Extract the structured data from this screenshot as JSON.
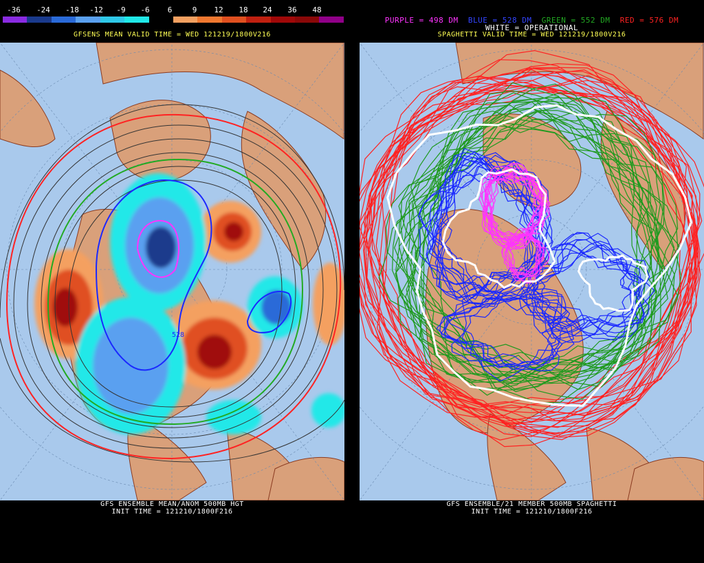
{
  "left_panel": {
    "colorbar": {
      "ticks": [
        "-36",
        "-24",
        "-18",
        "-12",
        "-9",
        "-6",
        "6",
        "9",
        "12",
        "18",
        "24",
        "36",
        "48"
      ],
      "colors": [
        "#8a2be2",
        "#1a3a8c",
        "#2a6ad8",
        "#5aa0f0",
        "#2fc8e8",
        "#20e8e8",
        "#000000",
        "#f4a060",
        "#f07830",
        "#e05020",
        "#c02010",
        "#a00808",
        "#8a0808",
        "#900088"
      ]
    },
    "valid_time": "GFSENS MEAN VALID TIME = WED 121219/1800V216",
    "contour_label": "528",
    "footer_line1": "GFS ENSEMBLE MEAN/ANOM 500MB HGT",
    "footer_line2": "INIT TIME = 121210/1800F216"
  },
  "right_panel": {
    "legend": {
      "purple": "PURPLE = 498 DM",
      "blue": "BLUE = 528 DM",
      "green": "GREEN = 552 DM",
      "red": "RED = 576 DM",
      "white": "WHITE = OPERATIONAL",
      "colors": {
        "purple": "#ff33ff",
        "blue": "#3344ff",
        "green": "#22aa22",
        "red": "#ff2222",
        "white": "#ffffff"
      }
    },
    "valid_time": "SPAGHETTI VALID TIME = WED 121219/1800V216",
    "footer_line1": "GFS ENSEMBLE/21 MEMBER 500MB SPAGHETTI",
    "footer_line2": "INIT TIME = 121210/1800F216"
  }
}
